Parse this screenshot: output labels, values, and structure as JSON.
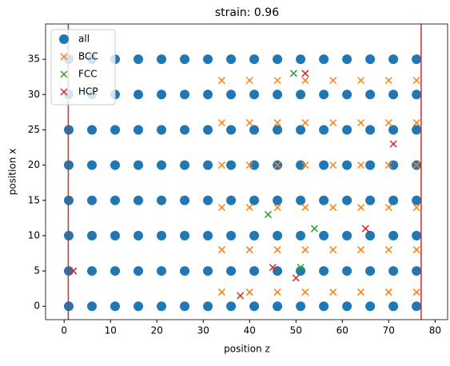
{
  "chart_data": {
    "type": "scatter",
    "title": "strain: 0.96",
    "xlabel": "position z",
    "ylabel": "position x",
    "xlim": [
      -4,
      82.7
    ],
    "ylim": [
      -1.9,
      40
    ],
    "xticks": [
      0,
      10,
      20,
      30,
      40,
      50,
      60,
      70,
      80
    ],
    "yticks": [
      0,
      5,
      10,
      15,
      20,
      25,
      30,
      35
    ],
    "legend": "upper left",
    "vlines": {
      "color": "#d62728",
      "x": [
        0.9,
        77
      ]
    },
    "series": [
      {
        "name": "all",
        "color": "#1f77b4",
        "marker": "o",
        "x": [
          1,
          6,
          11,
          16,
          21,
          26,
          31,
          36,
          41,
          46,
          51,
          56,
          61,
          66,
          71,
          76,
          1,
          6,
          11,
          16,
          21,
          26,
          31,
          36,
          41,
          46,
          51,
          56,
          61,
          66,
          71,
          76,
          1,
          6,
          11,
          16,
          21,
          26,
          31,
          36,
          41,
          46,
          51,
          56,
          61,
          66,
          71,
          76,
          1,
          6,
          11,
          16,
          21,
          26,
          31,
          36,
          41,
          46,
          51,
          56,
          61,
          66,
          71,
          76,
          1,
          6,
          11,
          16,
          21,
          26,
          31,
          36,
          41,
          46,
          51,
          56,
          61,
          66,
          71,
          76,
          1,
          6,
          11,
          16,
          21,
          26,
          31,
          36,
          41,
          46,
          51,
          56,
          61,
          66,
          71,
          76,
          1,
          6,
          11,
          16,
          21,
          26,
          31,
          36,
          41,
          46,
          51,
          56,
          61,
          66,
          71,
          76,
          1,
          6,
          11,
          16,
          21,
          26,
          31,
          36,
          41,
          46,
          51,
          56,
          61,
          66,
          71,
          76
        ],
        "y": [
          0,
          0,
          0,
          0,
          0,
          0,
          0,
          0,
          0,
          0,
          0,
          0,
          0,
          0,
          0,
          0,
          5,
          5,
          5,
          5,
          5,
          5,
          5,
          5,
          5,
          5,
          5,
          5,
          5,
          5,
          5,
          5,
          10,
          10,
          10,
          10,
          10,
          10,
          10,
          10,
          10,
          10,
          10,
          10,
          10,
          10,
          10,
          10,
          15,
          15,
          15,
          15,
          15,
          15,
          15,
          15,
          15,
          15,
          15,
          15,
          15,
          15,
          15,
          15,
          20,
          20,
          20,
          20,
          20,
          20,
          20,
          20,
          20,
          20,
          20,
          20,
          20,
          20,
          20,
          20,
          25,
          25,
          25,
          25,
          25,
          25,
          25,
          25,
          25,
          25,
          25,
          25,
          25,
          25,
          25,
          25,
          30,
          30,
          30,
          30,
          30,
          30,
          30,
          30,
          30,
          30,
          30,
          30,
          30,
          30,
          30,
          30,
          35,
          35,
          35,
          35,
          35,
          35,
          35,
          35,
          35,
          35,
          35,
          35,
          35,
          35,
          35,
          35
        ]
      },
      {
        "name": "BCC",
        "color": "#ff7f0e",
        "marker": "x",
        "x": [
          34,
          40,
          46,
          52,
          58,
          64,
          70,
          76,
          34,
          40,
          46,
          52,
          58,
          64,
          70,
          76,
          34,
          40,
          46,
          52,
          58,
          64,
          70,
          76,
          34,
          40,
          46,
          52,
          58,
          64,
          70,
          76,
          34,
          40,
          46,
          52,
          58,
          64,
          70,
          76,
          34,
          40,
          46,
          52,
          58,
          64,
          70,
          76
        ],
        "y": [
          2,
          2,
          2,
          2,
          2,
          2,
          2,
          2,
          8,
          8,
          8,
          8,
          8,
          8,
          8,
          8,
          14,
          14,
          14,
          14,
          14,
          14,
          14,
          14,
          20,
          20,
          20,
          20,
          20,
          20,
          20,
          20,
          26,
          26,
          26,
          26,
          26,
          26,
          26,
          26,
          32,
          32,
          32,
          32,
          32,
          32,
          32,
          32
        ]
      },
      {
        "name": "FCC",
        "color": "#2ca02c",
        "marker": "x",
        "x": [
          49.5,
          44,
          54,
          51
        ],
        "y": [
          33,
          13,
          11,
          5.5
        ]
      },
      {
        "name": "HCP",
        "color": "#d62728",
        "marker": "x",
        "x": [
          52,
          45,
          50,
          38,
          2,
          71,
          65
        ],
        "y": [
          33,
          5.5,
          4,
          1.5,
          5,
          23,
          11
        ]
      }
    ]
  }
}
